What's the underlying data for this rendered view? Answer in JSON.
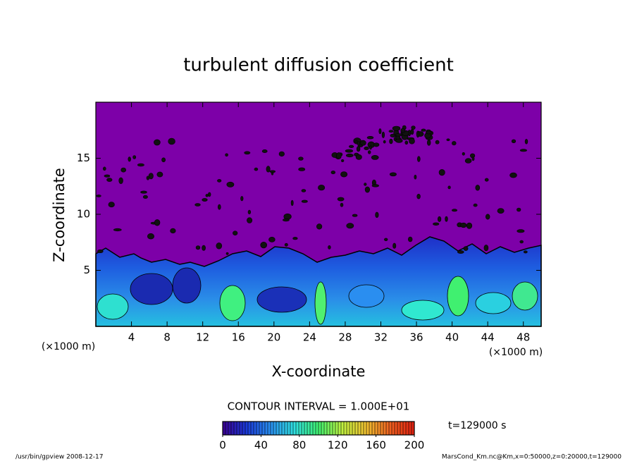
{
  "chart_data": {
    "type": "contour",
    "title": "turbulent diffusion coefficient",
    "x_label": "X-coordinate",
    "y_label": "Z-coordinate",
    "x_unit": "(×1000 m)",
    "y_unit": "(×1000 m)",
    "xlim": [
      0,
      50
    ],
    "ylim": [
      0,
      20
    ],
    "xticks": [
      4,
      8,
      12,
      16,
      20,
      24,
      28,
      32,
      36,
      40,
      44,
      48
    ],
    "yticks": [
      5,
      10,
      15
    ],
    "background_color": "#7d00a8",
    "colorbar": {
      "lim": [
        0,
        200
      ],
      "ticks": [
        0,
        40,
        80,
        120,
        160,
        200
      ],
      "colors": [
        "#3a0090",
        "#1a3ad8",
        "#2a90f0",
        "#30e0e0",
        "#40f070",
        "#c0f040",
        "#f0c030",
        "#f06020",
        "#e02010"
      ]
    },
    "contour_interval_label": "CONTOUR INTERVAL = 1.000E+01",
    "time_label": "t=129000 s",
    "footer_left": "/usr/bin/gpview   2008-12-17",
    "footer_right": "MarsCond_Km.nc@Km,x=0:50000,z=0:20000,t=129000"
  }
}
